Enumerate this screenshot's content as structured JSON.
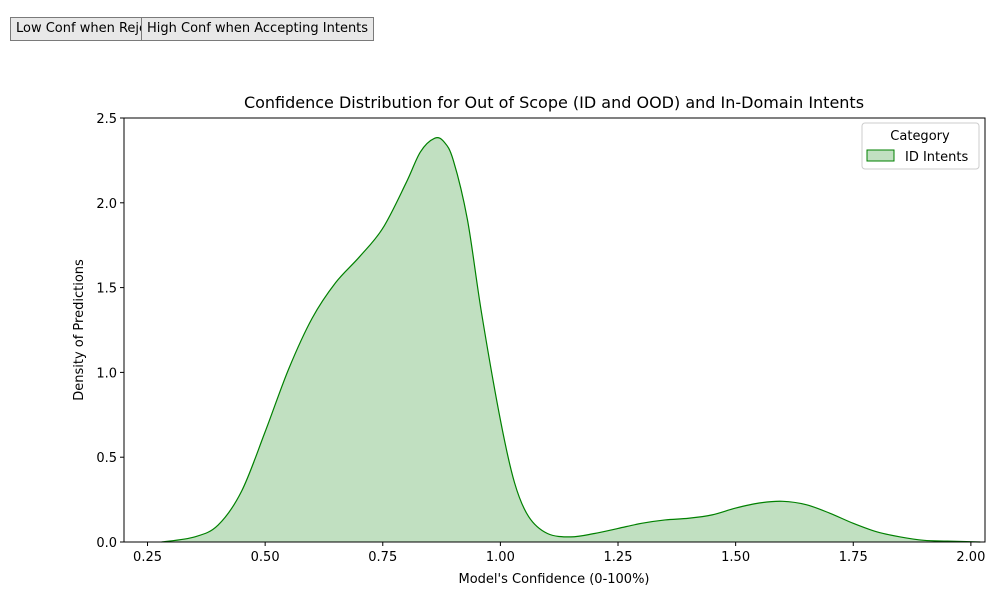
{
  "buttons": {
    "low_conf": "Low Conf when Rejecting Intents",
    "high_conf": "High Conf when Accepting Intents"
  },
  "chart_data": {
    "type": "area",
    "title": "Confidence Distribution for Out of Scope (ID and OOD) and In-Domain Intents",
    "xlabel": "Model's Confidence (0-100%)",
    "ylabel": "Density of Predictions",
    "xlim": [
      0.2,
      2.03
    ],
    "ylim": [
      0,
      2.5
    ],
    "xticks": [
      0.25,
      0.5,
      0.75,
      1.0,
      1.25,
      1.5,
      1.75,
      2.0
    ],
    "xtick_labels": [
      "0.25",
      "0.50",
      "0.75",
      "1.00",
      "1.25",
      "1.50",
      "1.75",
      "2.00"
    ],
    "yticks": [
      0.0,
      0.5,
      1.0,
      1.5,
      2.0,
      2.5
    ],
    "ytick_labels": [
      "0.0",
      "0.5",
      "1.0",
      "1.5",
      "2.0",
      "2.5"
    ],
    "grid": false,
    "legend": {
      "title": "Category",
      "placement": "top-right"
    },
    "series": [
      {
        "name": "ID Intents",
        "color": "#008000",
        "fill": "#c1e0c1",
        "x": [
          0.28,
          0.35,
          0.4,
          0.45,
          0.5,
          0.55,
          0.6,
          0.65,
          0.7,
          0.75,
          0.8,
          0.83,
          0.86,
          0.88,
          0.9,
          0.93,
          0.96,
          1.0,
          1.03,
          1.06,
          1.1,
          1.15,
          1.2,
          1.25,
          1.3,
          1.35,
          1.4,
          1.45,
          1.5,
          1.55,
          1.6,
          1.65,
          1.7,
          1.75,
          1.8,
          1.85,
          1.9,
          1.95,
          2.02
        ],
        "y": [
          0.0,
          0.03,
          0.1,
          0.3,
          0.65,
          1.02,
          1.32,
          1.53,
          1.68,
          1.85,
          2.12,
          2.3,
          2.38,
          2.36,
          2.25,
          1.9,
          1.35,
          0.72,
          0.35,
          0.15,
          0.05,
          0.03,
          0.05,
          0.08,
          0.11,
          0.13,
          0.14,
          0.16,
          0.2,
          0.23,
          0.24,
          0.22,
          0.17,
          0.11,
          0.06,
          0.03,
          0.01,
          0.005,
          0.0
        ]
      }
    ]
  }
}
